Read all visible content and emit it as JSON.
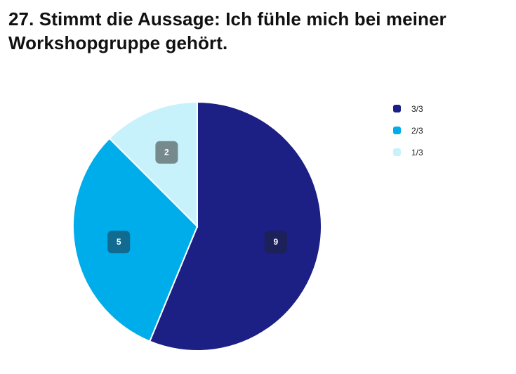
{
  "header": {
    "title": "27. Stimmt die Aussage: Ich fühle mich bei meiner Workshopgruppe gehört."
  },
  "chart_data": {
    "type": "pie",
    "title": "27. Stimmt die Aussage: Ich fühle mich bei meiner Workshopgruppe gehört.",
    "legend_position": "top-right",
    "start_angle": "12 o'clock",
    "direction": "clockwise",
    "slices": [
      {
        "label": "3/3",
        "value": 9,
        "color": "#1c1f84",
        "label_box_color": "#1d2248"
      },
      {
        "label": "2/3",
        "value": 5,
        "color": "#00adeb",
        "label_box_color": "#17506b"
      },
      {
        "label": "1/3",
        "value": 2,
        "color": "#c8f2fb",
        "label_box_color": "#565f63"
      }
    ]
  }
}
